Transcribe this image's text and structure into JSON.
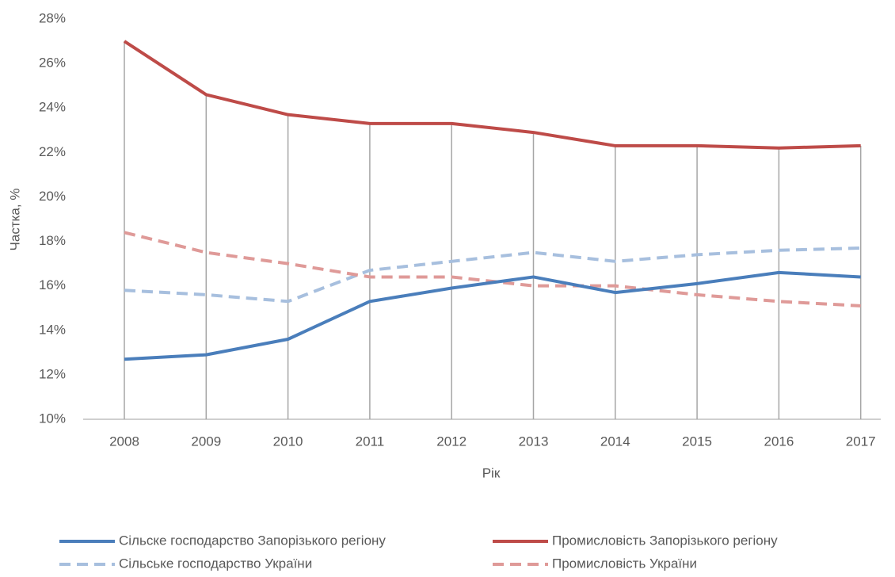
{
  "chart_data": {
    "type": "line",
    "x_label": "Рік",
    "y_label": "Частка, %",
    "categories": [
      "2008",
      "2009",
      "2010",
      "2011",
      "2012",
      "2013",
      "2014",
      "2015",
      "2016",
      "2017"
    ],
    "series": [
      {
        "name": "Сільске господарство Запорізького регіону",
        "color": "#4a7ebb",
        "dashed": false,
        "values": [
          12.7,
          12.9,
          13.6,
          15.3,
          15.9,
          16.4,
          15.7,
          16.1,
          16.6,
          16.4
        ]
      },
      {
        "name": "Промисловість Запорізького регіону",
        "color": "#be4b48",
        "dashed": false,
        "values": [
          27.0,
          24.6,
          23.7,
          23.3,
          23.3,
          22.9,
          22.3,
          22.3,
          22.2,
          22.3
        ]
      },
      {
        "name": "Сільське господарство України",
        "color": "#a7bfde",
        "dashed": true,
        "values": [
          15.8,
          15.6,
          15.3,
          16.7,
          17.1,
          17.5,
          17.1,
          17.4,
          17.6,
          17.7
        ]
      },
      {
        "name": "Промисловість України",
        "color": "#df9a98",
        "dashed": true,
        "values": [
          18.4,
          17.5,
          17.0,
          16.4,
          16.4,
          16.0,
          16.0,
          15.6,
          15.3,
          15.1
        ]
      }
    ],
    "ylim": [
      10,
      28
    ],
    "yticks": [
      {
        "value": 10,
        "label": "10%"
      },
      {
        "value": 12,
        "label": "12%"
      },
      {
        "value": 14,
        "label": "14%"
      },
      {
        "value": 16,
        "label": "16%"
      },
      {
        "value": 18,
        "label": "18%"
      },
      {
        "value": 20,
        "label": "20%"
      },
      {
        "value": 22,
        "label": "22%"
      },
      {
        "value": 24,
        "label": "24%"
      },
      {
        "value": 26,
        "label": "26%"
      },
      {
        "value": 28,
        "label": "28%"
      }
    ],
    "drop_lines": true,
    "legend": "bottom"
  }
}
